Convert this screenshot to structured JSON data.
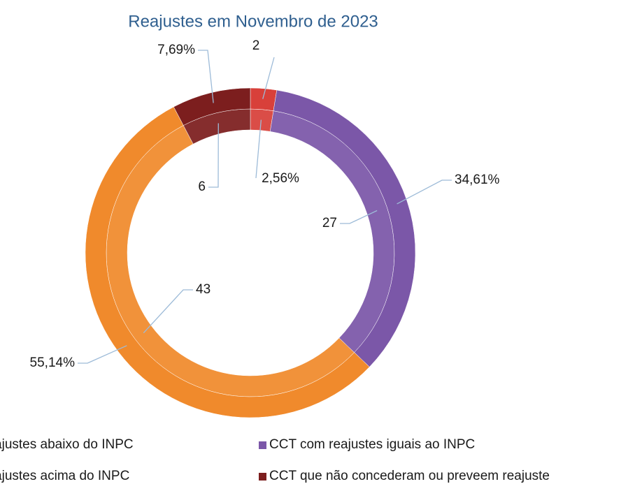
{
  "chart_data": {
    "type": "donut",
    "title": "Reajustes em Novembro de 2023",
    "categories": [
      "CCT com reajustes abaixo do INPC",
      "CCT com reajustes iguais ao INPC",
      "CCT com reajustes acima do INPC",
      "CCT que não concederam ou preveem reajuste"
    ],
    "colors": [
      "#d8403a",
      "#7b57a8",
      "#f08a2c",
      "#7c1e1e"
    ],
    "series": [
      {
        "values": [
          2,
          27,
          43,
          6
        ]
      },
      {
        "values": [
          2.56,
          34.61,
          55.14,
          7.69
        ],
        "value_labels": [
          "2,56%",
          "34,61%",
          "55,14%",
          "7,69%"
        ]
      }
    ],
    "legend": "bottom"
  }
}
